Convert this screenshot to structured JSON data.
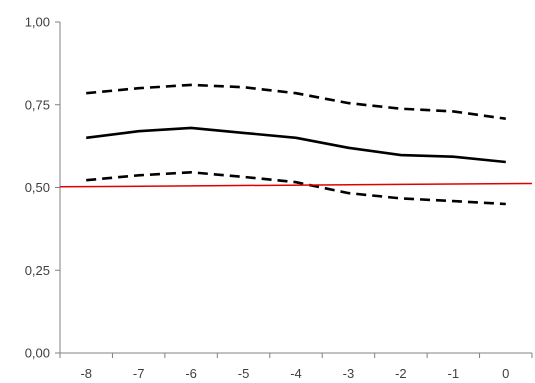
{
  "chart_data": {
    "type": "line",
    "title": "",
    "xlabel": "",
    "ylabel": "",
    "x": [
      -8,
      -7,
      -6,
      -5,
      -4,
      -3,
      -2,
      -1,
      0
    ],
    "x_tick_labels": [
      "-8",
      "-7",
      "-6",
      "-5",
      "-4",
      "-3",
      "-2",
      "-1",
      "0"
    ],
    "y_ticks": [
      0,
      0.25,
      0.5,
      0.75,
      1.0
    ],
    "y_tick_labels": [
      "0,00",
      "0,25",
      "0,50",
      "0,75",
      "1,00"
    ],
    "ylim": [
      0,
      1.0
    ],
    "grid": false,
    "legend": "none",
    "series": [
      {
        "role": "estimate",
        "style": "solid",
        "color": "#000000",
        "values": [
          0.65,
          0.67,
          0.68,
          0.665,
          0.65,
          0.62,
          0.598,
          0.593,
          0.577
        ]
      },
      {
        "role": "upper-bound",
        "style": "dashed",
        "color": "#000000",
        "values": [
          0.785,
          0.8,
          0.81,
          0.803,
          0.785,
          0.755,
          0.738,
          0.73,
          0.708
        ]
      },
      {
        "role": "lower-bound",
        "style": "dashed",
        "color": "#000000",
        "values": [
          0.522,
          0.537,
          0.546,
          0.532,
          0.516,
          0.483,
          0.467,
          0.459,
          0.45
        ]
      },
      {
        "role": "reference",
        "style": "solid",
        "color": "#e00000",
        "values": [
          0.502,
          0.503,
          0.505,
          0.506,
          0.507,
          0.508,
          0.509,
          0.51,
          0.512
        ]
      }
    ]
  }
}
